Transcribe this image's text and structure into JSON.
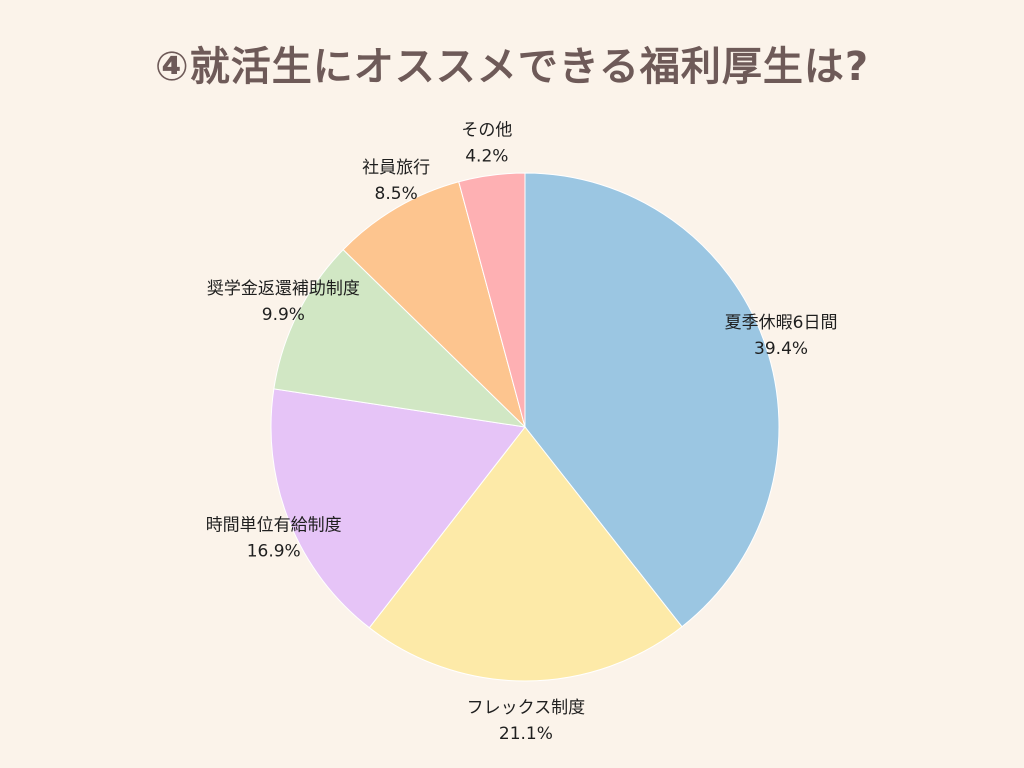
{
  "title": "④就活生にオススメできる福利厚生は?",
  "chart_data": {
    "type": "pie",
    "title": "④就活生にオススメできる福利厚生は?",
    "slices": [
      {
        "label": "夏季休暇6日間",
        "value": 39.4,
        "value_label": "39.4%",
        "color": "#9bc6e2"
      },
      {
        "label": "フレックス制度",
        "value": 21.1,
        "value_label": "21.1%",
        "color": "#fdeaa8"
      },
      {
        "label": "時間単位有給制度",
        "value": 16.9,
        "value_label": "16.9%",
        "color": "#e6c4f7"
      },
      {
        "label": "奨学金返還補助制度",
        "value": 9.9,
        "value_label": "9.9%",
        "color": "#d1e7c4"
      },
      {
        "label": "社員旅行",
        "value": 8.5,
        "value_label": "8.5%",
        "color": "#fdc58f"
      },
      {
        "label": "その他",
        "value": 4.2,
        "value_label": "4.2%",
        "color": "#feb0b3"
      }
    ],
    "start": "12 o'clock",
    "direction": "clockwise",
    "legend": "none"
  }
}
